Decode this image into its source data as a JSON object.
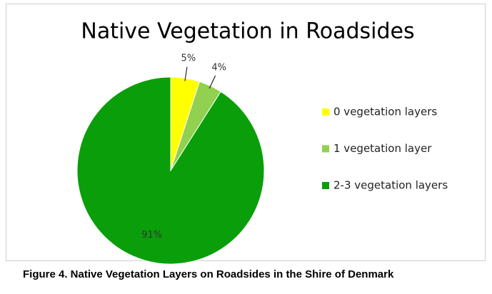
{
  "chart_data": {
    "type": "pie",
    "title": "Native Vegetation in Roadsides",
    "categories": [
      "0 vegetation layers",
      "1 vegetation layer",
      "2-3 vegetation layers"
    ],
    "values": [
      5,
      4,
      91
    ],
    "value_labels": [
      "5%",
      "4%",
      "91%"
    ],
    "colors": [
      "#ffff00",
      "#92d050",
      "#0a9e0a"
    ],
    "legend": "right",
    "caption": "Figure 4. Native Vegetation Layers on Roadsides in the Shire of Denmark"
  }
}
